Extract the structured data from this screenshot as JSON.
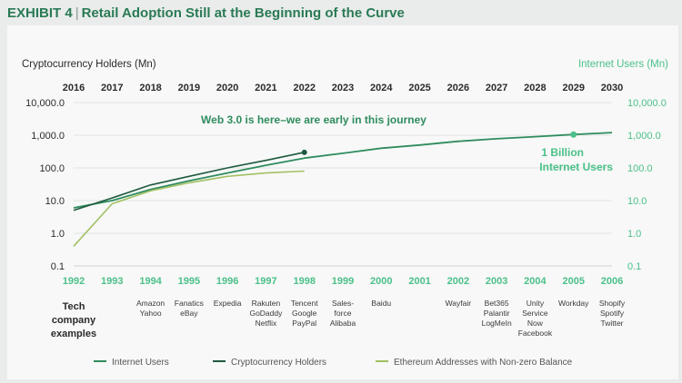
{
  "header": {
    "exhibit_label": "EXHIBIT 4",
    "separator": "|",
    "title": "Retail Adoption Still at the Beginning of the Curve"
  },
  "colors": {
    "green_dark": "#1f5a3f",
    "green": "#2f8c5e",
    "green_light": "#4cc08a",
    "green_olive": "#a3c063",
    "text": "#2b2b2b"
  },
  "chart_data": {
    "type": "line",
    "y_scale": "log",
    "ylim": [
      0.1,
      10000
    ],
    "left_axis_title": "Cryptocurrency Holders (Mn)",
    "right_axis_title": "Internet Users (Mn)",
    "left_ticks": [
      "10,000.0",
      "1,000.0",
      "100.0",
      "10.0",
      "1.0",
      "0.1"
    ],
    "right_ticks": [
      "10,000.0",
      "1,000.0",
      "100.0",
      "10.0",
      "1.0",
      "0.1"
    ],
    "top_years": [
      "2016",
      "2017",
      "2018",
      "2019",
      "2020",
      "2021",
      "2022",
      "2023",
      "2024",
      "2025",
      "2026",
      "2027",
      "2028",
      "2029",
      "2030"
    ],
    "bottom_years": [
      "1992",
      "1993",
      "1994",
      "1995",
      "1996",
      "1997",
      "1998",
      "1999",
      "2000",
      "2001",
      "2002",
      "2003",
      "2004",
      "2005",
      "2006"
    ],
    "series": [
      {
        "name": "Internet Users",
        "color_key": "green",
        "x": [
          1992,
          1993,
          1994,
          1995,
          1996,
          1997,
          1998,
          1999,
          2000,
          2001,
          2002,
          2003,
          2004,
          2005,
          2006
        ],
        "values": [
          6,
          10,
          22,
          40,
          70,
          120,
          200,
          280,
          400,
          500,
          650,
          780,
          900,
          1050,
          1200
        ]
      },
      {
        "name": "Cryptocurrency Holders",
        "color_key": "green_dark",
        "x": [
          2016,
          2017,
          2018,
          2019,
          2020,
          2021,
          2022
        ],
        "values": [
          5,
          12,
          30,
          55,
          100,
          170,
          300
        ]
      },
      {
        "name": "Ethereum Addresses with Non-zero Balance",
        "color_key": "green_olive",
        "x": [
          2016,
          2017,
          2018,
          2019,
          2020,
          2021,
          2022
        ],
        "values": [
          0.4,
          8,
          20,
          35,
          55,
          70,
          80
        ]
      }
    ],
    "annotations": {
      "web3": "Web 3.0 is here–we are early in this journey",
      "billion_line1": "1 Billion",
      "billion_line2": "Internet Users"
    },
    "tech_label": [
      "Tech",
      "company",
      "examples"
    ],
    "companies": [
      {
        "year": "1994",
        "names": [
          "Amazon",
          "Yahoo"
        ]
      },
      {
        "year": "1995",
        "names": [
          "Fanatics",
          "eBay"
        ]
      },
      {
        "year": "1996",
        "names": [
          "Expedia"
        ]
      },
      {
        "year": "1997",
        "names": [
          "Rakuten",
          "GoDaddy",
          "Netflix"
        ]
      },
      {
        "year": "1998",
        "names": [
          "Tencent",
          "Google",
          "PayPal"
        ]
      },
      {
        "year": "1999",
        "names": [
          "Sales-",
          "force",
          "Alibaba"
        ]
      },
      {
        "year": "2000",
        "names": [
          "Baidu"
        ]
      },
      {
        "year": "2002",
        "names": [
          "Wayfair"
        ]
      },
      {
        "year": "2003",
        "names": [
          "Bet365",
          "Palantir",
          "LogMeIn"
        ]
      },
      {
        "year": "2004",
        "names": [
          "Unity",
          "Service",
          "Now",
          "Facebook"
        ]
      },
      {
        "year": "2005",
        "names": [
          "Workday"
        ]
      },
      {
        "year": "2006",
        "names": [
          "Shopify",
          "Spotify",
          "Twitter"
        ]
      }
    ]
  }
}
